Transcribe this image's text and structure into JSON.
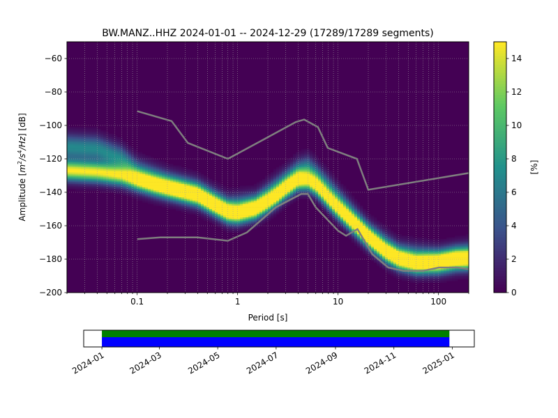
{
  "chart_data": [
    {
      "type": "heatmap",
      "title": "BW.MANZ..HHZ   2024-01-01 -- 2024-12-29  (17289/17289 segments)",
      "xlabel": "Period [s]",
      "ylabel_prefix": "Amplitude [",
      "ylabel_math": "m",
      "ylabel_sup1": "2",
      "ylabel_mid": "/s",
      "ylabel_sup2": "4",
      "ylabel_suffix": "/Hz] [dB]",
      "x_scale": "log",
      "xlim": [
        0.02,
        200
      ],
      "ylim": [
        -200,
        -50
      ],
      "x_ticks": [
        0.1,
        1,
        10,
        100
      ],
      "x_tick_labels": [
        "0.1",
        "1",
        "10",
        "100"
      ],
      "y_ticks": [
        -200,
        -180,
        -160,
        -140,
        -120,
        -100,
        -80,
        -60
      ],
      "y_tick_labels": [
        "−200",
        "−180",
        "−160",
        "−140",
        "−120",
        "−100",
        "−80",
        "−60"
      ],
      "grid": true,
      "colormap": "viridis",
      "colorbar": {
        "label": "[%]",
        "range": [
          0,
          15
        ],
        "ticks": [
          0,
          2,
          4,
          6,
          8,
          10,
          12,
          14
        ],
        "tick_labels": [
          "0",
          "2",
          "4",
          "6",
          "8",
          "10",
          "12",
          "14"
        ]
      },
      "psd_bands": [
        {
          "name": "band_main",
          "points": [
            [
              0.02,
              -127
            ],
            [
              0.04,
              -128
            ],
            [
              0.07,
              -130
            ],
            [
              0.1,
              -133
            ],
            [
              0.15,
              -136
            ],
            [
              0.25,
              -139
            ],
            [
              0.4,
              -142
            ],
            [
              0.6,
              -148
            ],
            [
              0.8,
              -152
            ],
            [
              1.0,
              -153
            ],
            [
              1.5,
              -150
            ],
            [
              2.0,
              -146
            ],
            [
              2.5,
              -142
            ],
            [
              3.0,
              -138
            ],
            [
              4.0,
              -133
            ],
            [
              5.0,
              -133
            ],
            [
              6.0,
              -136
            ],
            [
              7.0,
              -140
            ],
            [
              8.0,
              -144
            ],
            [
              10.0,
              -150
            ],
            [
              15.0,
              -160
            ],
            [
              20.0,
              -167
            ],
            [
              30.0,
              -176
            ],
            [
              40.0,
              -180
            ],
            [
              60.0,
              -183
            ],
            [
              100.0,
              -182
            ],
            [
              150.0,
              -180
            ],
            [
              200.0,
              -180
            ]
          ],
          "peak_percent": 15
        },
        {
          "name": "band_upper",
          "points": [
            [
              0.02,
              -113
            ],
            [
              0.04,
              -114
            ],
            [
              0.07,
              -120
            ],
            [
              0.1,
              -128
            ],
            [
              0.2,
              -135
            ],
            [
              0.4,
              -140
            ],
            [
              0.8,
              -150
            ],
            [
              1.5,
              -148
            ],
            [
              3.0,
              -134
            ],
            [
              4.0,
              -128
            ],
            [
              5.0,
              -126
            ],
            [
              6.0,
              -130
            ],
            [
              8.0,
              -138
            ],
            [
              12.0,
              -150
            ],
            [
              20.0,
              -165
            ],
            [
              40.0,
              -178
            ],
            [
              100.0,
              -181
            ],
            [
              200.0,
              -178
            ]
          ],
          "peak_percent": 7
        }
      ],
      "nlnm_curve": [
        [
          0.1,
          -168
        ],
        [
          0.17,
          -167
        ],
        [
          0.4,
          -167
        ],
        [
          0.8,
          -169
        ],
        [
          1.24,
          -164
        ],
        [
          2.4,
          -149
        ],
        [
          4.3,
          -141
        ],
        [
          5.0,
          -141
        ],
        [
          6.0,
          -149
        ],
        [
          10.0,
          -163
        ],
        [
          12.0,
          -166
        ],
        [
          15.6,
          -162
        ],
        [
          21.9,
          -177
        ],
        [
          31.6,
          -185
        ],
        [
          45.0,
          -187
        ],
        [
          70.0,
          -187
        ],
        [
          101.0,
          -185
        ],
        [
          154.0,
          -185
        ],
        [
          200.0,
          -186
        ]
      ],
      "nhnm_curve": [
        [
          0.1,
          -91.5
        ],
        [
          0.22,
          -97.4
        ],
        [
          0.32,
          -110.5
        ],
        [
          0.8,
          -120
        ],
        [
          3.8,
          -98
        ],
        [
          4.6,
          -96.5
        ],
        [
          6.3,
          -101
        ],
        [
          7.9,
          -113.5
        ],
        [
          15.4,
          -120
        ],
        [
          20.0,
          -138.5
        ],
        [
          200.0,
          -128.5
        ]
      ]
    },
    {
      "type": "timeline",
      "xlim": [
        "2023-12-13",
        "2025-01-24"
      ],
      "coverage_start": "2024-01-01",
      "coverage_end": "2024-12-29",
      "colors": {
        "top": "#008000",
        "bottom": "#0000ff"
      },
      "x_tick_labels": [
        "2024-01",
        "2024-03",
        "2024-05",
        "2024-07",
        "2024-09",
        "2024-11",
        "2025-01"
      ],
      "x_tick_dates": [
        "2024-01-01",
        "2024-03-01",
        "2024-05-01",
        "2024-07-01",
        "2024-09-01",
        "2024-11-01",
        "2025-01-01"
      ]
    }
  ]
}
